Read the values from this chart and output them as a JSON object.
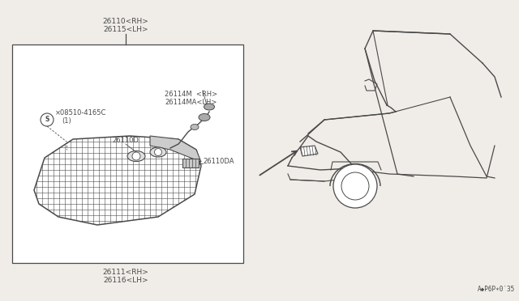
{
  "bg_color": "#f0ede8",
  "line_color": "#4a4a4a",
  "text_color": "#4a4a4a",
  "fs_label": 6.5,
  "fs_small": 6.0,
  "lw_main": 0.9,
  "lw_thin": 0.5,
  "labels": {
    "top1": "26110<RH>",
    "top2": "26115<LH>",
    "bulb_socket1": "26114M  <RH>",
    "bulb_socket2": "26114MA<LH>",
    "bulb": "26110D",
    "connector": "26110DA",
    "lens1": "26111<RH>",
    "lens2": "26116<LH>",
    "screw_num": "×08510-4165C",
    "screw_qty": "(1)",
    "page_code": "A◆P6P∗0‵35"
  }
}
